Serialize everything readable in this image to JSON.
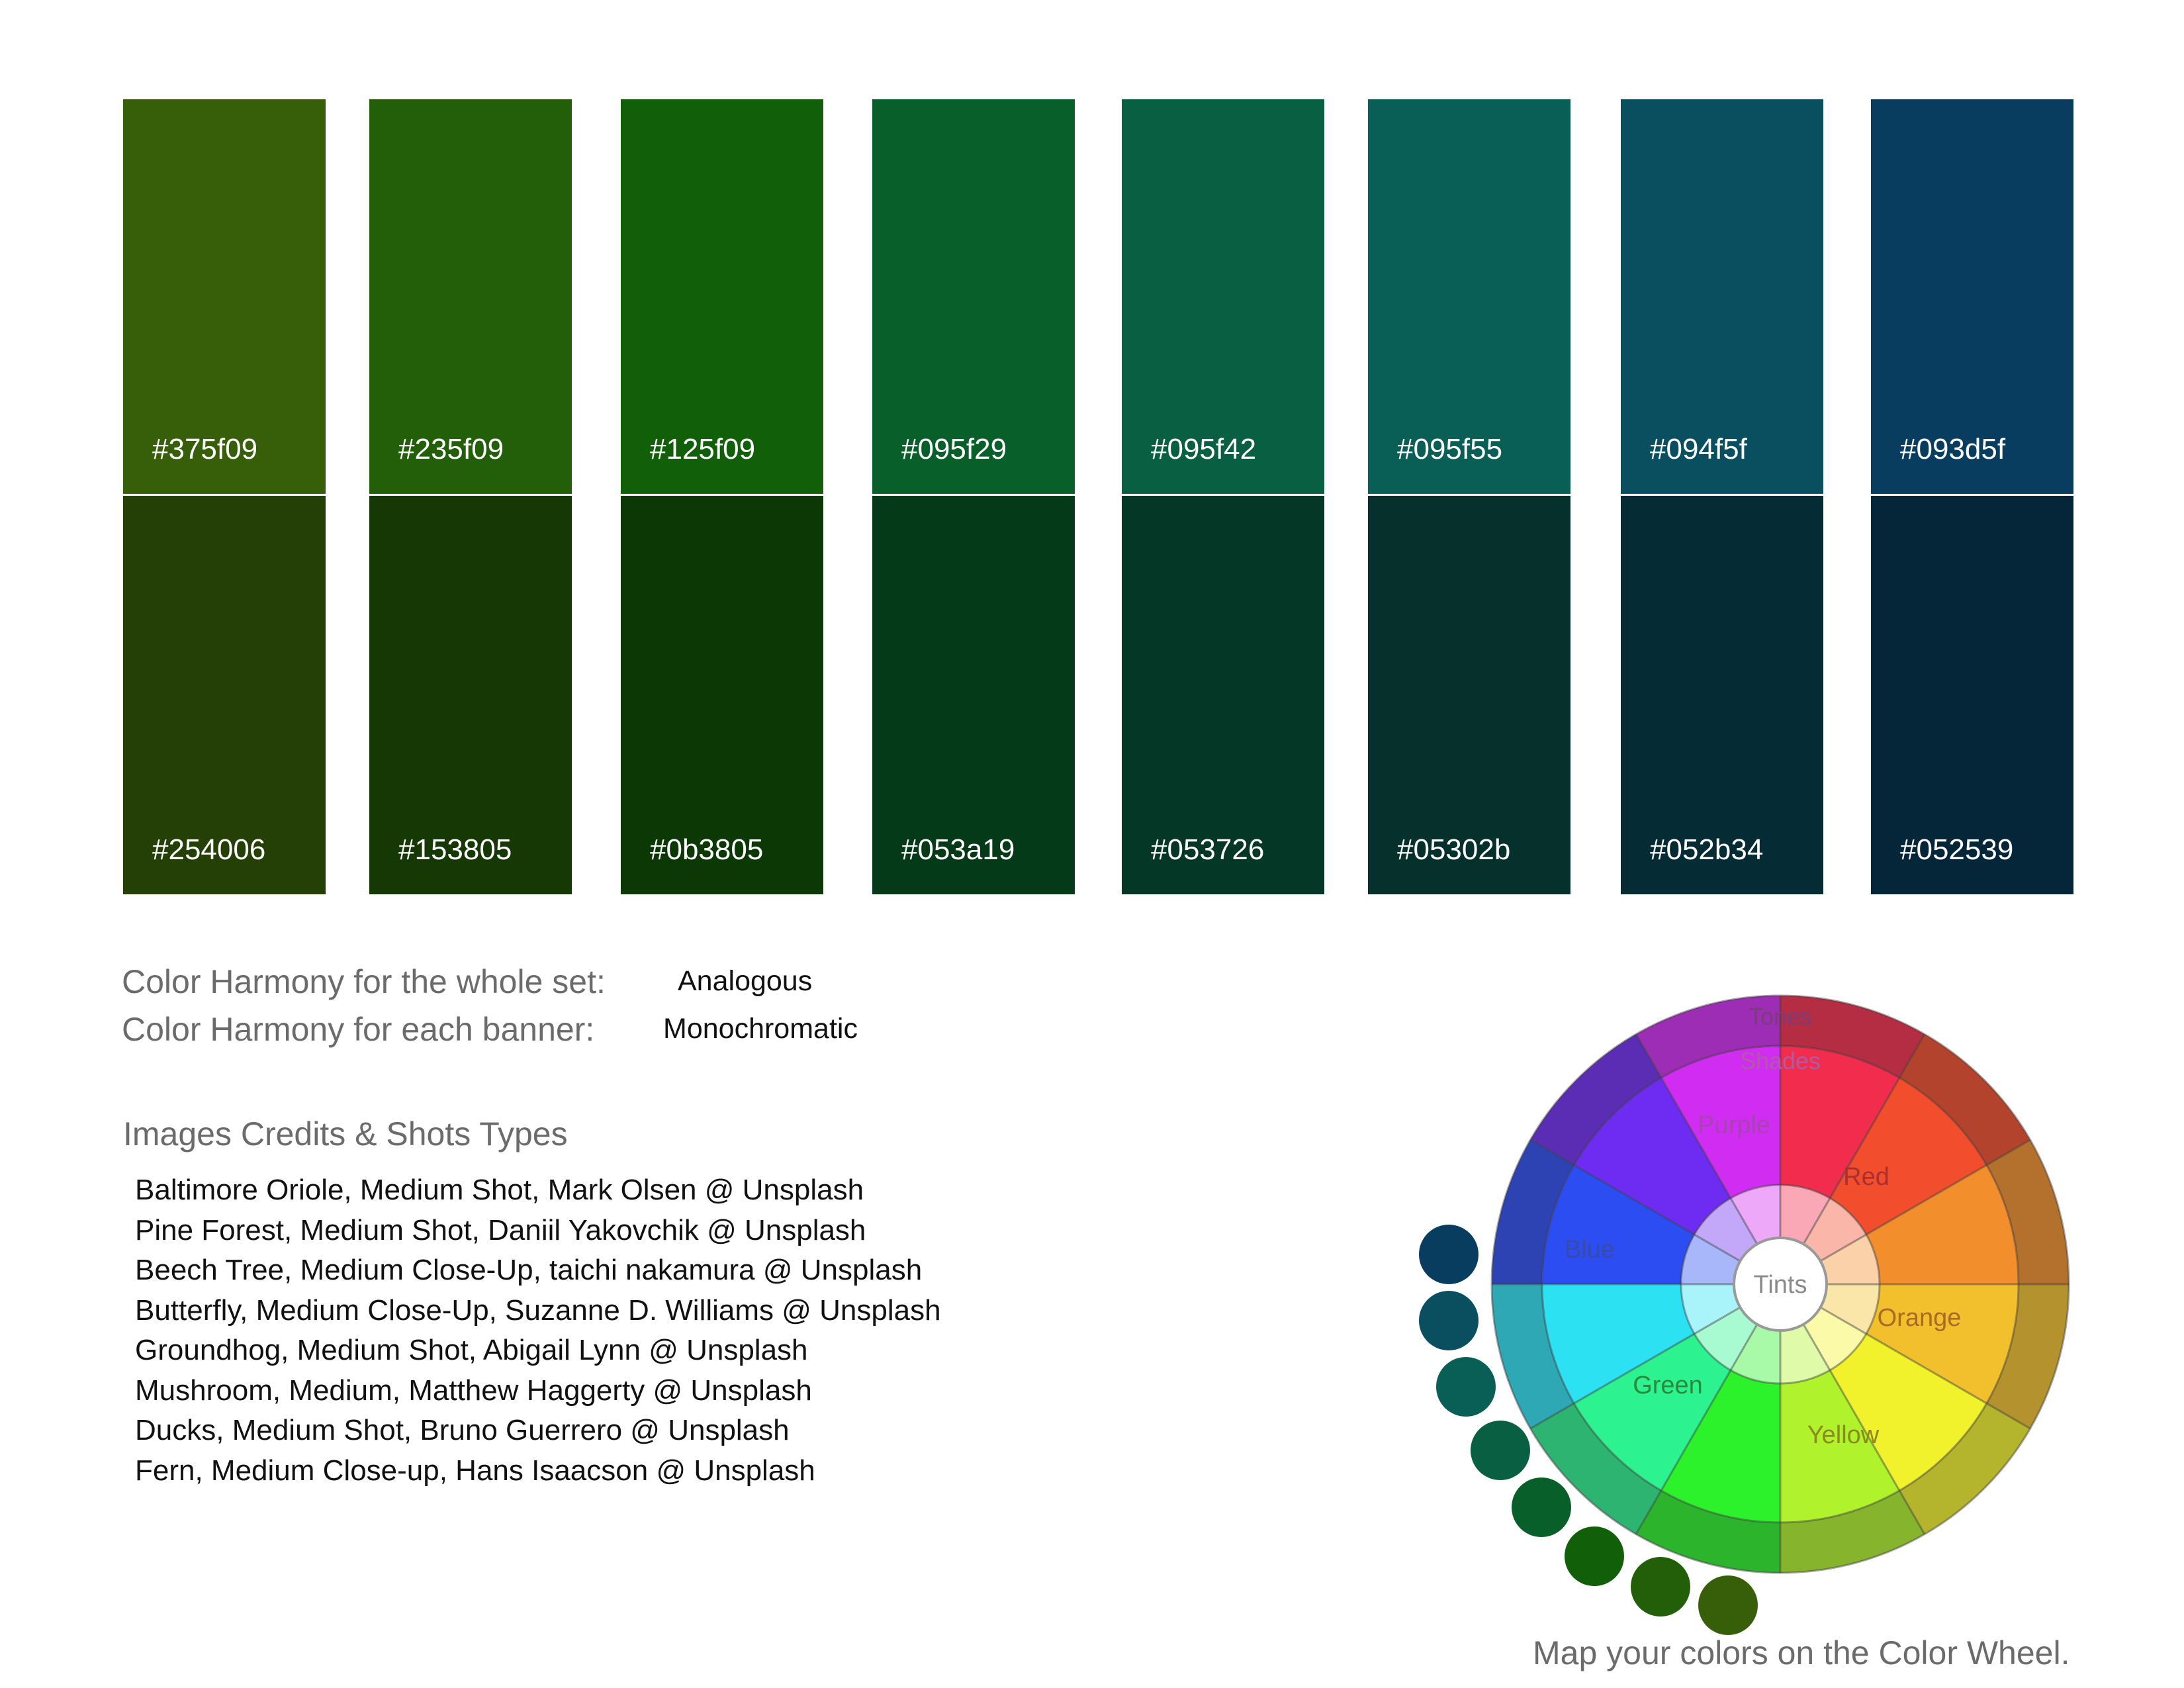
{
  "palette": {
    "columns": [
      {
        "top": "#375f09",
        "bottom": "#254006"
      },
      {
        "top": "#235f09",
        "bottom": "#153805"
      },
      {
        "top": "#125f09",
        "bottom": "#0b3805"
      },
      {
        "top": "#095f29",
        "bottom": "#053a19"
      },
      {
        "top": "#095f42",
        "bottom": "#053726"
      },
      {
        "top": "#095f55",
        "bottom": "#05302b"
      },
      {
        "top": "#094f5f",
        "bottom": "#052b34"
      },
      {
        "top": "#093d5f",
        "bottom": "#052539"
      }
    ]
  },
  "harmony": {
    "whole_set_label": "Color Harmony for the whole set:",
    "whole_set_value": "Analogous",
    "each_banner_label": "Color Harmony for each banner:",
    "each_banner_value": "Monochromatic"
  },
  "credits": {
    "title": "Images Credits & Shots Types",
    "items": [
      "Baltimore Oriole, Medium Shot, Mark Olsen @ Unsplash",
      "Pine Forest, Medium Shot, Daniil Yakovchik @ Unsplash",
      "Beech Tree, Medium Close-Up, taichi nakamura @ Unsplash",
      "Butterfly, Medium Close-Up, Suzanne D. Williams @ Unsplash",
      "Groundhog, Medium Shot, Abigail Lynn @ Unsplash",
      "Mushroom, Medium, Matthew Haggerty @ Unsplash",
      "Ducks, Medium Shot, Bruno Guerrero @ Unsplash",
      "Fern, Medium Close-up, Hans Isaacson @ Unsplash"
    ]
  },
  "color_wheel": {
    "ring_labels": {
      "outer": "Tones",
      "middle": "Shades",
      "center": "Tints"
    },
    "hue_labels": [
      "Purple",
      "Red",
      "Orange",
      "Yellow",
      "Green",
      "Blue"
    ],
    "caption": "Map your colors on the Color Wheel.",
    "mapped_dots": [
      "#093d5f",
      "#094f5f",
      "#095f55",
      "#095f42",
      "#095f29",
      "#125f09",
      "#235f09",
      "#375f09"
    ]
  }
}
